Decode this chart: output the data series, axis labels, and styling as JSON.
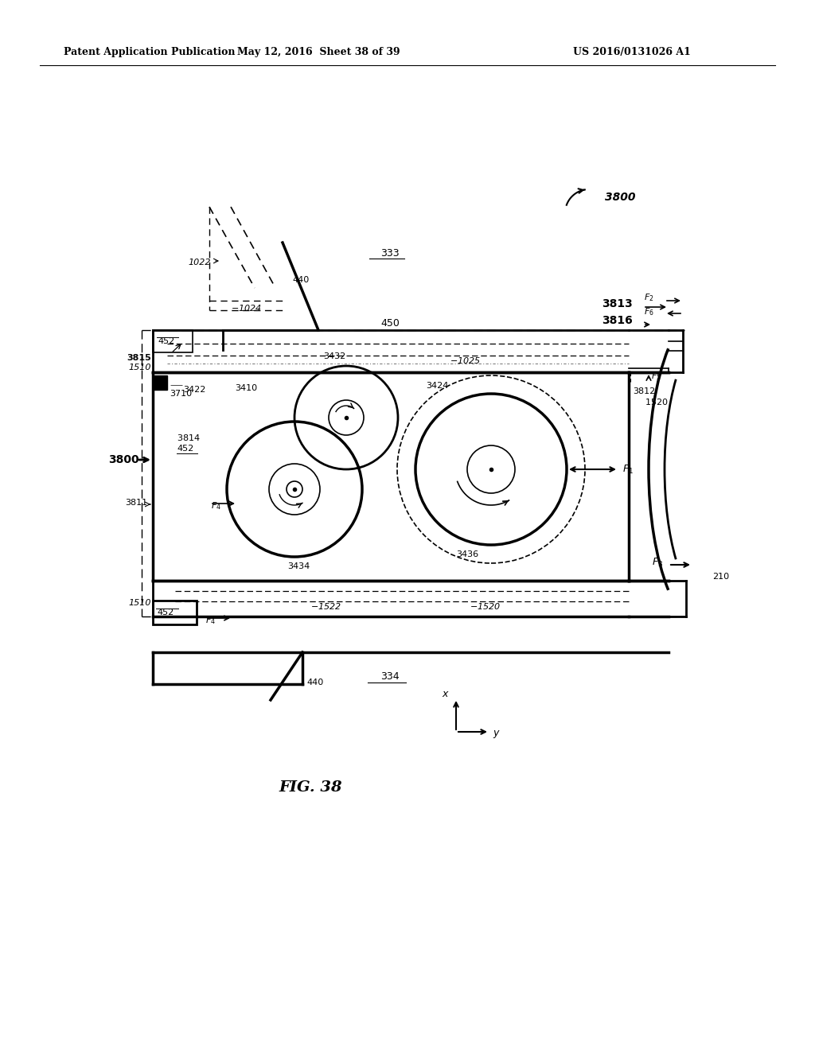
{
  "bg_color": "#ffffff",
  "header_left": "Patent Application Publication",
  "header_center": "May 12, 2016  Sheet 38 of 39",
  "header_right": "US 2016/0131026 A1",
  "fig_label": "FIG. 38"
}
